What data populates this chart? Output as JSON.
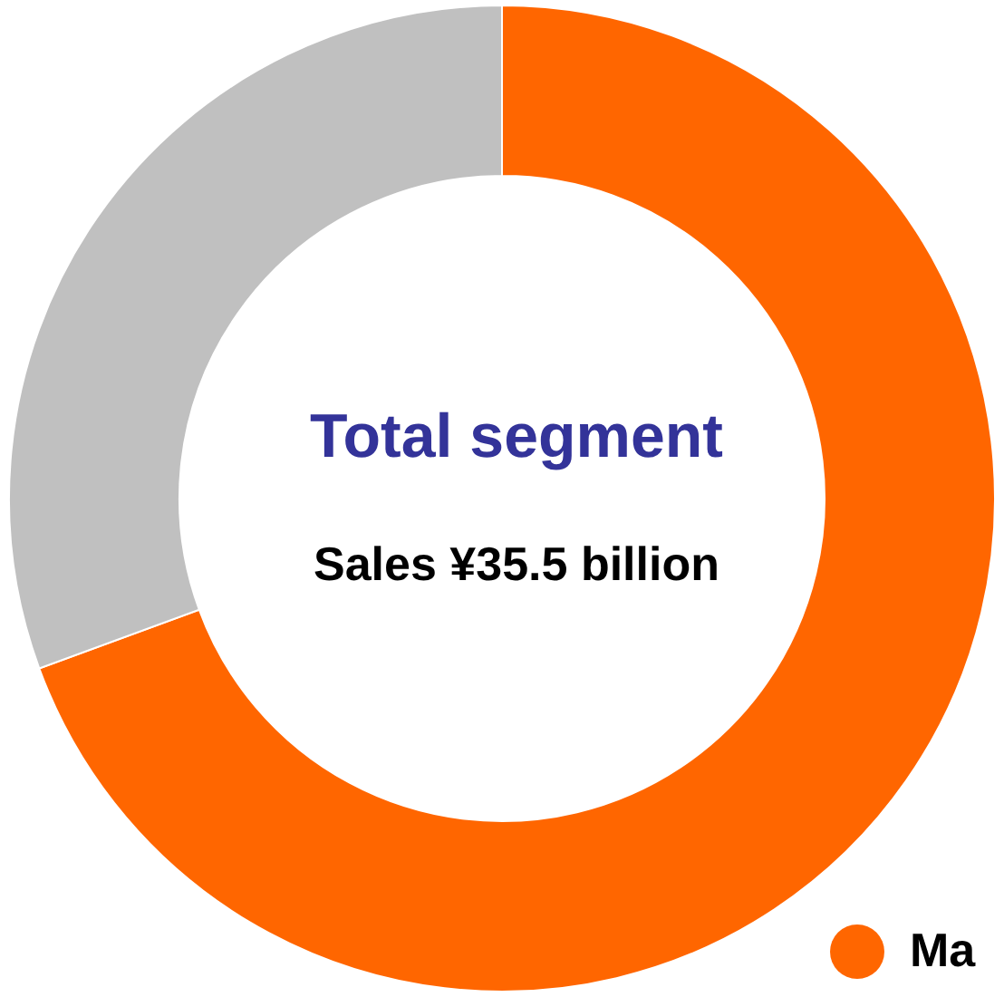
{
  "chart_data": {
    "type": "donut",
    "title": "Total segment",
    "subtitle": "Sales  ¥35.5 billion",
    "categories": [
      "Ma",
      null
    ],
    "values": [
      69.4,
      30.6
    ],
    "colors": [
      "#ff6600",
      "#c0c0c0"
    ],
    "legend": "bottom right"
  }
}
